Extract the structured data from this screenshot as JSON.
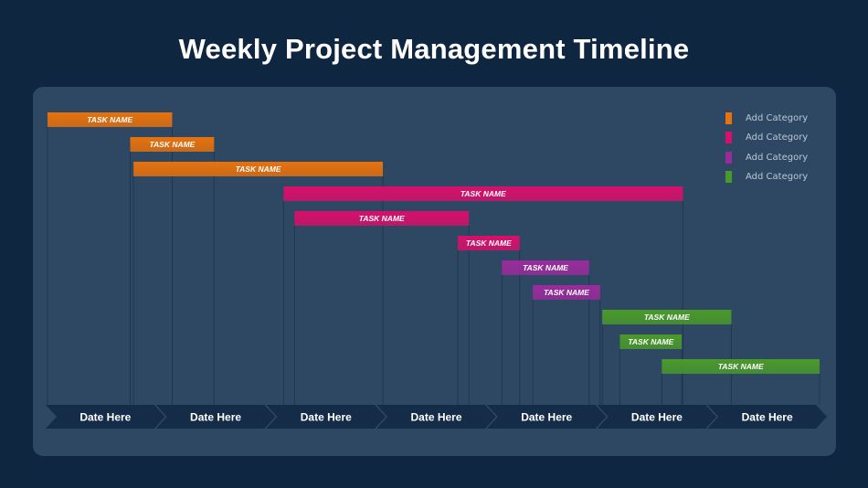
{
  "title": "Weekly Project Management Timeline",
  "colors": {
    "background": "#0f2640",
    "panel": "#2e4863",
    "arrow": "#142c47",
    "gridline": "#1f3650",
    "category_1": "#e8720c",
    "category_2": "#d80f6b",
    "category_3": "#9a2b9c",
    "category_4": "#4a9a2a"
  },
  "legend": [
    {
      "label": "Add Category",
      "color": "#e8720c",
      "icon": "legend-swatch-orange"
    },
    {
      "label": "Add Category",
      "color": "#d80f6b",
      "icon": "legend-swatch-magenta"
    },
    {
      "label": "Add Category",
      "color": "#9a2b9c",
      "icon": "legend-swatch-purple"
    },
    {
      "label": "Add Category",
      "color": "#4a9a2a",
      "icon": "legend-swatch-green"
    }
  ],
  "chart_data": {
    "type": "gantt",
    "dates": [
      "Date Here",
      "Date Here",
      "Date Here",
      "Date Here",
      "Date Here",
      "Date Here",
      "Date Here"
    ],
    "x_range": [
      0,
      7
    ],
    "tasks": [
      {
        "label": "TASK NAME",
        "category": 1,
        "start": 0.0,
        "end": 1.13
      },
      {
        "label": "TASK NAME",
        "category": 1,
        "start": 0.75,
        "end": 1.51
      },
      {
        "label": "TASK NAME",
        "category": 1,
        "start": 0.78,
        "end": 3.04
      },
      {
        "label": "TASK NAME",
        "category": 2,
        "start": 2.14,
        "end": 5.76
      },
      {
        "label": "TASK NAME",
        "category": 2,
        "start": 2.24,
        "end": 3.82
      },
      {
        "label": "TASK NAME",
        "category": 2,
        "start": 3.72,
        "end": 4.28
      },
      {
        "label": "TASK NAME",
        "category": 3,
        "start": 4.12,
        "end": 4.91
      },
      {
        "label": "TASK NAME",
        "category": 3,
        "start": 4.4,
        "end": 5.01
      },
      {
        "label": "TASK NAME",
        "category": 4,
        "start": 5.03,
        "end": 6.2
      },
      {
        "label": "TASK NAME",
        "category": 4,
        "start": 5.19,
        "end": 5.75
      },
      {
        "label": "TASK NAME",
        "category": 4,
        "start": 5.57,
        "end": 7.0
      }
    ]
  }
}
